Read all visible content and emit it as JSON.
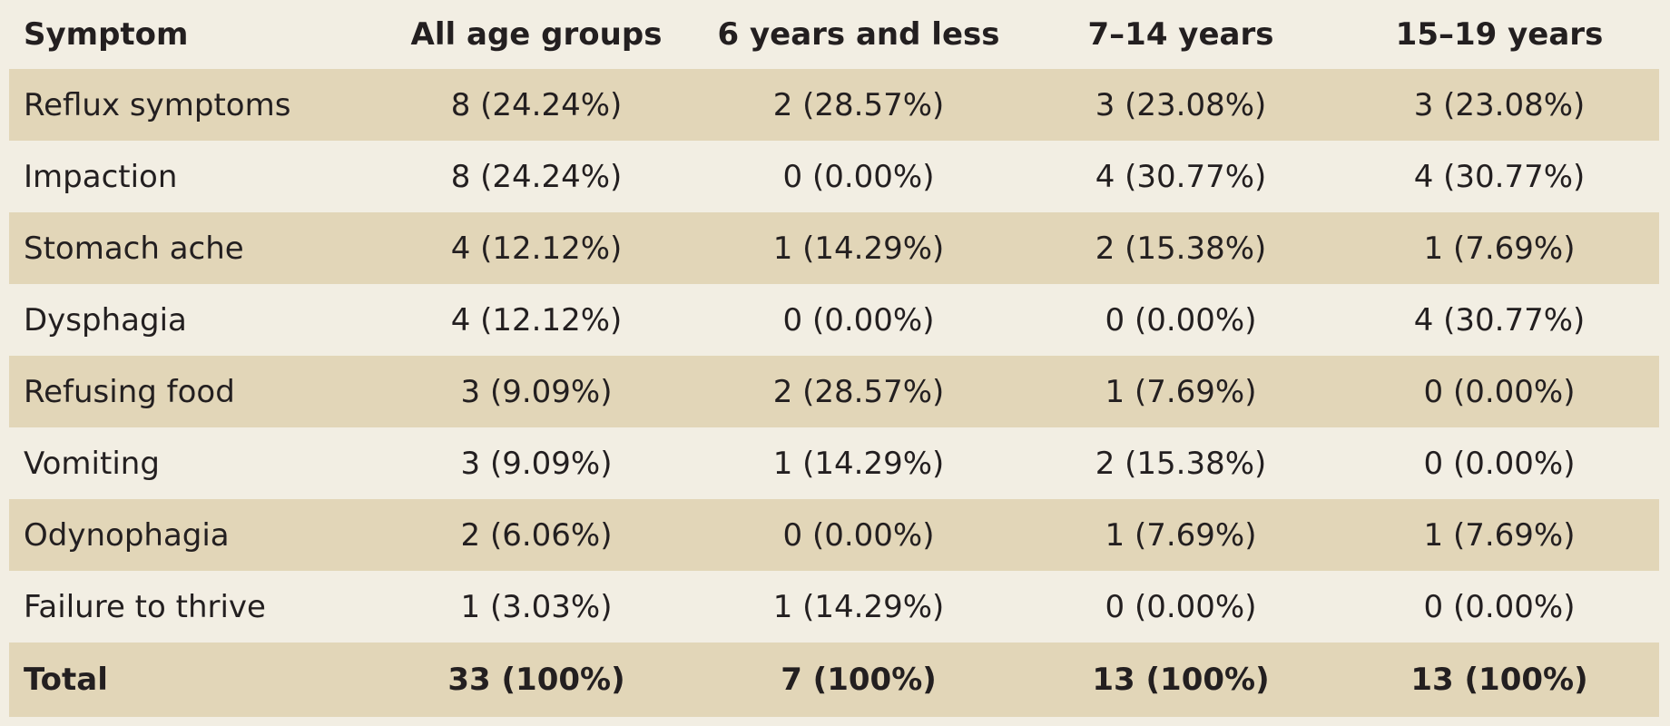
{
  "table": {
    "headers": [
      "Symptom",
      "All age groups",
      "6 years and less",
      "7–14 years",
      "15–19 years"
    ],
    "rows": [
      [
        "Reflux symptoms",
        "8 (24.24%)",
        "2 (28.57%)",
        "3 (23.08%)",
        "3 (23.08%)"
      ],
      [
        "Impaction",
        "8 (24.24%)",
        "0 (0.00%)",
        "4 (30.77%)",
        "4 (30.77%)"
      ],
      [
        "Stomach ache",
        "4 (12.12%)",
        "1 (14.29%)",
        "2 (15.38%)",
        "1 (7.69%)"
      ],
      [
        "Dysphagia",
        "4 (12.12%)",
        "0 (0.00%)",
        "0 (0.00%)",
        "4 (30.77%)"
      ],
      [
        "Refusing food",
        "3 (9.09%)",
        "2 (28.57%)",
        "1 (7.69%)",
        "0 (0.00%)"
      ],
      [
        "Vomiting",
        "3 (9.09%)",
        "1 (14.29%)",
        "2 (15.38%)",
        "0 (0.00%)"
      ],
      [
        "Odynophagia",
        "2 (6.06%)",
        "0 (0.00%)",
        "1 (7.69%)",
        "1 (7.69%)"
      ],
      [
        "Failure to thrive",
        "1 (3.03%)",
        "1 (14.29%)",
        "0 (0.00%)",
        "0 (0.00%)"
      ]
    ],
    "total": [
      "Total",
      "33 (100%)",
      "7 (100%)",
      "13 (100%)",
      "13 (100%)"
    ]
  },
  "colors": {
    "background": "#f2eee3",
    "band": "#e2d6b8",
    "text": "#231f20"
  }
}
